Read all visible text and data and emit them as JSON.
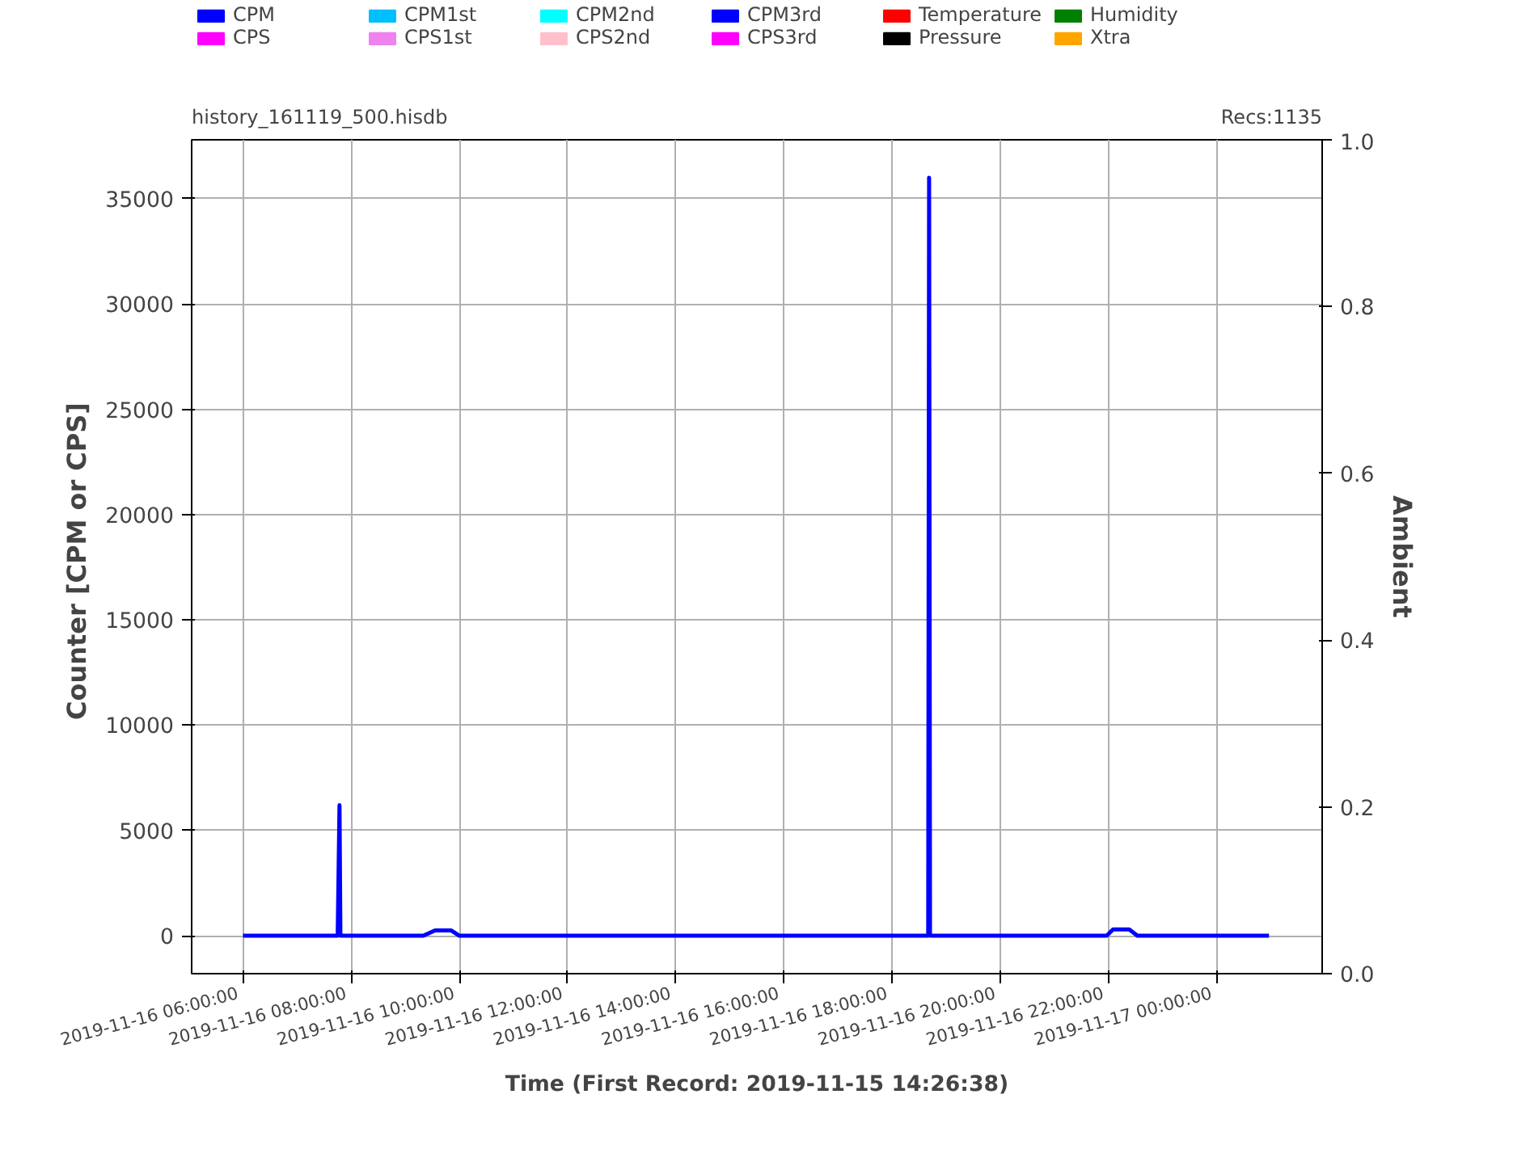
{
  "chart_data": {
    "type": "line",
    "title": "history_161119_500.hisdb",
    "annotations": [
      "Recs:1135"
    ],
    "xlabel": "Time (First Record: 2019-11-15 14:26:38)",
    "ylabel": "Counter  [CPM or CPS]",
    "y2label": "Ambient",
    "x": [
      "2019-11-16T06:00",
      "2019-11-16T07:45",
      "2019-11-16T07:47",
      "2019-11-16T07:48",
      "2019-11-16T09:20",
      "2019-11-16T09:33",
      "2019-11-16T09:51",
      "2019-11-16T10:00",
      "2019-11-16T18:40",
      "2019-11-16T18:41",
      "2019-11-16T18:42",
      "2019-11-16T21:58",
      "2019-11-16T22:05",
      "2019-11-16T22:23",
      "2019-11-16T22:32",
      "2019-11-17T00:58"
    ],
    "series": [
      {
        "name": "CPM",
        "color": "#0000ff",
        "values": [
          0,
          0,
          6200,
          0,
          0,
          250,
          250,
          0,
          0,
          36000,
          0,
          0,
          300,
          300,
          0,
          0
        ]
      },
      {
        "name": "CPS",
        "color": "#ff00ff",
        "values": [
          null,
          null,
          null,
          null,
          null,
          null,
          null,
          null,
          null,
          null,
          null,
          null,
          null,
          null,
          null,
          null
        ]
      },
      {
        "name": "CPM1st",
        "color": "#00bfff",
        "values": [
          null,
          null,
          null,
          null,
          null,
          null,
          null,
          null,
          null,
          null,
          null,
          null,
          null,
          null,
          null,
          null
        ]
      },
      {
        "name": "CPS1st",
        "color": "#ee82ee",
        "values": [
          null,
          null,
          null,
          null,
          null,
          null,
          null,
          null,
          null,
          null,
          null,
          null,
          null,
          null,
          null,
          null
        ]
      },
      {
        "name": "CPM2nd",
        "color": "#00ffff",
        "values": [
          null,
          null,
          null,
          null,
          null,
          null,
          null,
          null,
          null,
          null,
          null,
          null,
          null,
          null,
          null,
          null
        ]
      },
      {
        "name": "CPS2nd",
        "color": "#ffc0cb",
        "values": [
          null,
          null,
          null,
          null,
          null,
          null,
          null,
          null,
          null,
          null,
          null,
          null,
          null,
          null,
          null,
          null
        ]
      },
      {
        "name": "CPM3rd",
        "color": "#0000ff",
        "values": [
          null,
          null,
          null,
          null,
          null,
          null,
          null,
          null,
          null,
          null,
          null,
          null,
          null,
          null,
          null,
          null
        ]
      },
      {
        "name": "CPS3rd",
        "color": "#ff00ff",
        "values": [
          null,
          null,
          null,
          null,
          null,
          null,
          null,
          null,
          null,
          null,
          null,
          null,
          null,
          null,
          null,
          null
        ]
      },
      {
        "name": "Temperature",
        "color": "#ff0000",
        "values": [
          null,
          null,
          null,
          null,
          null,
          null,
          null,
          null,
          null,
          null,
          null,
          null,
          null,
          null,
          null,
          null
        ]
      },
      {
        "name": "Pressure",
        "color": "#000000",
        "values": [
          null,
          null,
          null,
          null,
          null,
          null,
          null,
          null,
          null,
          null,
          null,
          null,
          null,
          null,
          null,
          null
        ]
      },
      {
        "name": "Humidity",
        "color": "#008000",
        "values": [
          null,
          null,
          null,
          null,
          null,
          null,
          null,
          null,
          null,
          null,
          null,
          null,
          null,
          null,
          null,
          null
        ]
      },
      {
        "name": "Xtra",
        "color": "#ffa500",
        "values": [
          null,
          null,
          null,
          null,
          null,
          null,
          null,
          null,
          null,
          null,
          null,
          null,
          null,
          null,
          null,
          null
        ]
      }
    ],
    "xlim": [
      "2019-11-16T05:03",
      "2019-11-17T01:57"
    ],
    "xticks": [
      {
        "value": "2019-11-16T06:00",
        "label": "2019-11-16  06:00:00"
      },
      {
        "value": "2019-11-16T08:00",
        "label": "2019-11-16  08:00:00"
      },
      {
        "value": "2019-11-16T10:00",
        "label": "2019-11-16  10:00:00"
      },
      {
        "value": "2019-11-16T12:00",
        "label": "2019-11-16  12:00:00"
      },
      {
        "value": "2019-11-16T14:00",
        "label": "2019-11-16  14:00:00"
      },
      {
        "value": "2019-11-16T16:00",
        "label": "2019-11-16  16:00:00"
      },
      {
        "value": "2019-11-16T18:00",
        "label": "2019-11-16  18:00:00"
      },
      {
        "value": "2019-11-16T20:00",
        "label": "2019-11-16  20:00:00"
      },
      {
        "value": "2019-11-16T22:00",
        "label": "2019-11-16  22:00:00"
      },
      {
        "value": "2019-11-17T00:00",
        "label": "2019-11-17  00:00:00"
      }
    ],
    "ylim": [
      -1800,
      37800
    ],
    "yticks": [
      0,
      5000,
      10000,
      15000,
      20000,
      25000,
      30000,
      35000
    ],
    "y2lim": [
      0,
      1
    ],
    "y2ticks": [
      {
        "value": 0,
        "label": "0.0"
      },
      {
        "value": 0.2,
        "label": "0.2"
      },
      {
        "value": 0.4,
        "label": "0.4"
      },
      {
        "value": 0.6,
        "label": "0.6"
      },
      {
        "value": 0.8,
        "label": "0.8"
      },
      {
        "value": 1,
        "label": "1.0"
      }
    ],
    "grid": true,
    "legend": "top",
    "line_style": "solid",
    "marker": "none"
  }
}
